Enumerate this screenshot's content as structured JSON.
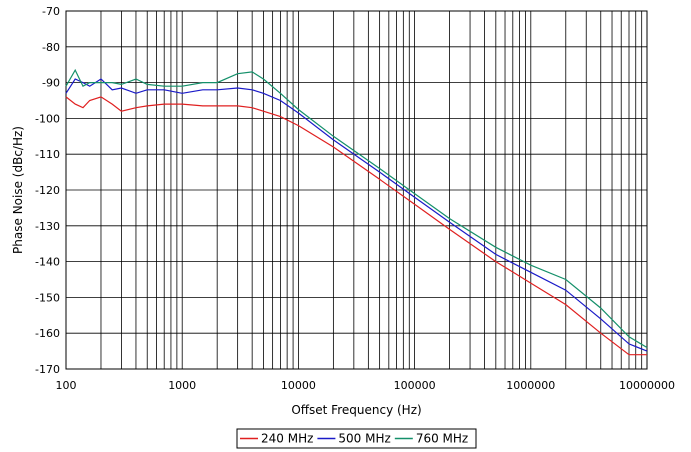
{
  "chart_data": {
    "type": "line",
    "title": "",
    "xlabel": "Offset Frequency (Hz)",
    "ylabel": "Phase Noise (dBc/Hz)",
    "x_scale": "log",
    "xlim": [
      100,
      10000000
    ],
    "ylim": [
      -170,
      -70
    ],
    "x_ticks": [
      "100",
      "1000",
      "10000",
      "100000",
      "1000000",
      "10000000"
    ],
    "y_ticks": [
      "-70",
      "-80",
      "-90",
      "-100",
      "-110",
      "-120",
      "-130",
      "-140",
      "-150",
      "-160",
      "-170"
    ],
    "grid": true,
    "legend_position": "bottom",
    "series": [
      {
        "name": "240 MHz",
        "color": "#e02020",
        "x": [
          100,
          120,
          140,
          160,
          200,
          250,
          300,
          400,
          500,
          700,
          1000,
          1500,
          2000,
          3000,
          4000,
          5000,
          7000,
          10000,
          20000,
          50000,
          100000,
          200000,
          500000,
          1000000,
          2000000,
          4000000,
          7000000,
          10000000
        ],
        "y": [
          -94,
          -96,
          -97,
          -95,
          -94,
          -96,
          -98,
          -97,
          -96.5,
          -96,
          -96,
          -96.5,
          -96.5,
          -96.5,
          -97,
          -98,
          -99.5,
          -102,
          -108,
          -117,
          -124,
          -131,
          -140,
          -146,
          -152,
          -160,
          -166,
          -166
        ]
      },
      {
        "name": "500 MHz",
        "color": "#1a1ac8",
        "x": [
          100,
          120,
          140,
          160,
          200,
          250,
          300,
          400,
          500,
          700,
          1000,
          1500,
          2000,
          3000,
          4000,
          5000,
          7000,
          10000,
          20000,
          50000,
          100000,
          200000,
          500000,
          1000000,
          2000000,
          4000000,
          7000000,
          10000000
        ],
        "y": [
          -93,
          -89,
          -90,
          -91,
          -89,
          -92,
          -91.5,
          -93,
          -92,
          -92,
          -93,
          -92,
          -92,
          -91.5,
          -92,
          -93,
          -95,
          -98.5,
          -106,
          -115,
          -122,
          -129,
          -138,
          -143,
          -148,
          -156,
          -163,
          -165
        ]
      },
      {
        "name": "760 MHz",
        "color": "#14906a",
        "x": [
          100,
          120,
          140,
          160,
          200,
          250,
          300,
          400,
          500,
          700,
          1000,
          1500,
          2000,
          3000,
          4000,
          5000,
          7000,
          10000,
          20000,
          50000,
          100000,
          200000,
          500000,
          1000000,
          2000000,
          4000000,
          7000000,
          10000000
        ],
        "y": [
          -91,
          -86.5,
          -91,
          -90,
          -90,
          -90,
          -90.5,
          -89,
          -90.5,
          -91,
          -91,
          -90,
          -90,
          -87.5,
          -87,
          -89,
          -93,
          -97.5,
          -105,
          -114,
          -121,
          -128,
          -136,
          -141,
          -145,
          -153,
          -161,
          -164
        ]
      }
    ]
  }
}
